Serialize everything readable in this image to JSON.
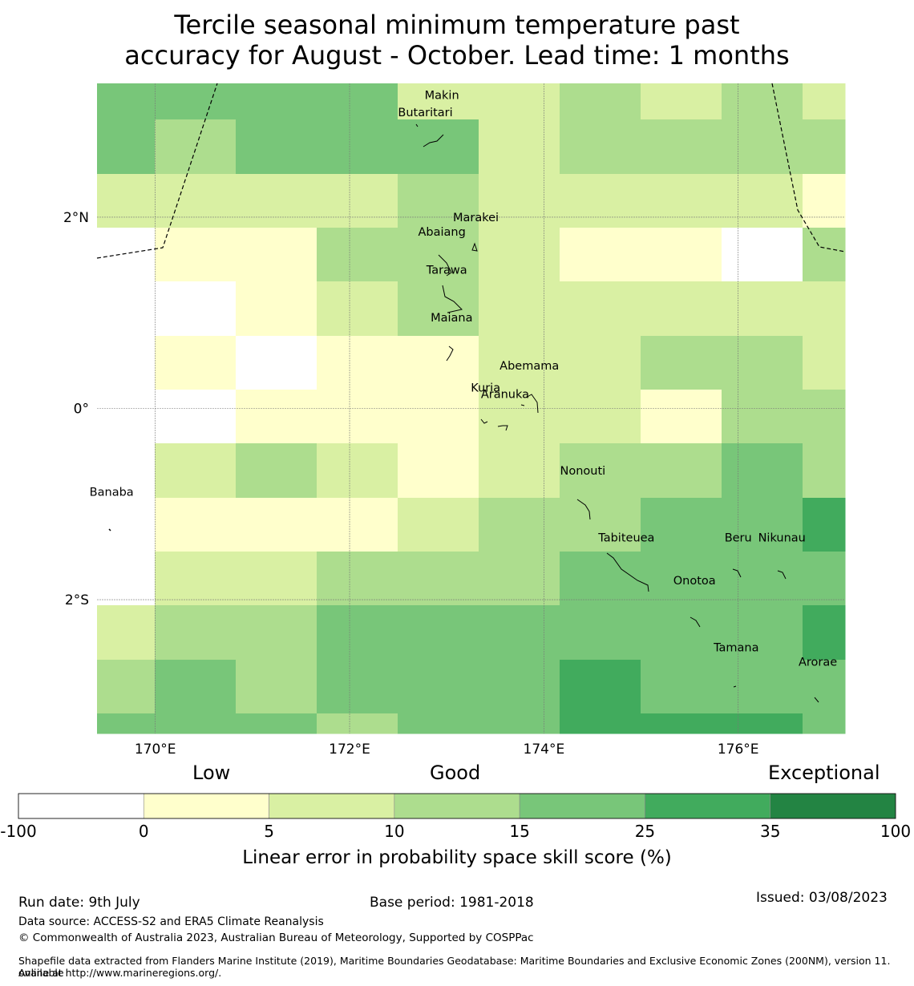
{
  "title": {
    "line1": "Tercile seasonal minimum temperature past",
    "line2": "accuracy for August - October. Lead time: 1 months"
  },
  "map": {
    "lon_range": [
      169.4,
      177.1
    ],
    "lat_range": [
      -3.4,
      3.4
    ],
    "lon_ticks": [
      {
        "value": 170,
        "label": "170°E"
      },
      {
        "value": 172,
        "label": "172°E"
      },
      {
        "value": 174,
        "label": "174°E"
      },
      {
        "value": 176,
        "label": "176°E"
      }
    ],
    "lat_ticks": [
      {
        "value": 2,
        "label": "2°N"
      },
      {
        "value": 0,
        "label": "0°"
      },
      {
        "value": -2,
        "label": "2°S"
      }
    ],
    "grid_columns": 9,
    "grid_rows": 12,
    "grid_values": [
      [
        20,
        20,
        20,
        20,
        7,
        7,
        12,
        7,
        12,
        7
      ],
      [
        20,
        12,
        20,
        20,
        20,
        7,
        12,
        12,
        12,
        12
      ],
      [
        7,
        7,
        7,
        7,
        12,
        7,
        7,
        7,
        7,
        2
      ],
      [
        -1,
        2,
        2,
        12,
        12,
        7,
        2,
        2,
        -1,
        12
      ],
      [
        -1,
        -1,
        2,
        7,
        12,
        7,
        7,
        7,
        7,
        7
      ],
      [
        -1,
        2,
        -1,
        2,
        2,
        7,
        7,
        12,
        12,
        7
      ],
      [
        -1,
        -1,
        2,
        2,
        2,
        7,
        7,
        2,
        12,
        12
      ],
      [
        -1,
        7,
        12,
        7,
        2,
        7,
        12,
        12,
        20,
        12
      ],
      [
        -1,
        2,
        2,
        2,
        7,
        12,
        12,
        20,
        20,
        30
      ],
      [
        -1,
        7,
        7,
        12,
        12,
        12,
        20,
        20,
        20,
        20
      ],
      [
        7,
        12,
        12,
        20,
        20,
        20,
        20,
        20,
        20,
        30
      ],
      [
        12,
        20,
        12,
        20,
        20,
        20,
        30,
        20,
        20,
        20
      ],
      [
        20,
        20,
        20,
        12,
        20,
        20,
        30,
        30,
        30,
        20
      ]
    ],
    "islands": [
      {
        "name": "Makin",
        "lon": 172.95,
        "lat": 3.28
      },
      {
        "name": "Butaritari",
        "lon": 172.78,
        "lat": 3.1
      },
      {
        "name": "Marakei",
        "lon": 173.3,
        "lat": 2.0
      },
      {
        "name": "Abaiang",
        "lon": 172.95,
        "lat": 1.85
      },
      {
        "name": "Tarawa",
        "lon": 173.0,
        "lat": 1.45
      },
      {
        "name": "Maiana",
        "lon": 173.05,
        "lat": 0.95
      },
      {
        "name": "Abemama",
        "lon": 173.85,
        "lat": 0.45
      },
      {
        "name": "Kuria",
        "lon": 173.4,
        "lat": 0.22
      },
      {
        "name": "Aranuka",
        "lon": 173.6,
        "lat": 0.15
      },
      {
        "name": "Banaba",
        "lon": 169.55,
        "lat": -0.87
      },
      {
        "name": "Nonouti",
        "lon": 174.4,
        "lat": -0.65
      },
      {
        "name": "Tabiteuea",
        "lon": 174.85,
        "lat": -1.35
      },
      {
        "name": "Beru",
        "lon": 176.0,
        "lat": -1.35
      },
      {
        "name": "Nikunau",
        "lon": 176.45,
        "lat": -1.35
      },
      {
        "name": "Onotoa",
        "lon": 175.55,
        "lat": -1.8
      },
      {
        "name": "Tamana",
        "lon": 175.98,
        "lat": -2.5
      },
      {
        "name": "Arorae",
        "lon": 176.82,
        "lat": -2.65
      }
    ],
    "eez_boundary_color": "#000000"
  },
  "colorbar": {
    "category_labels": {
      "low": "Low",
      "good": "Good",
      "exceptional": "Exceptional"
    },
    "bins": [
      {
        "from": -100,
        "to": 0,
        "color": "#ffffff"
      },
      {
        "from": 0,
        "to": 5,
        "color": "#ffffcc"
      },
      {
        "from": 5,
        "to": 10,
        "color": "#d9f0a3"
      },
      {
        "from": 10,
        "to": 15,
        "color": "#addd8e"
      },
      {
        "from": 15,
        "to": 25,
        "color": "#78c679"
      },
      {
        "from": 25,
        "to": 35,
        "color": "#41ab5d"
      },
      {
        "from": 35,
        "to": 100,
        "color": "#238443"
      }
    ],
    "tick_labels": [
      "-100",
      "0",
      "5",
      "10",
      "15",
      "25",
      "35",
      "100"
    ],
    "label": "Linear error in probability space skill score (%)"
  },
  "footer": {
    "run_date": "Run date: 9th July",
    "base_period": "Base period: 1981-2018",
    "issued": "Issued: 03/08/2023",
    "data_source": "Data source: ACCESS-S2 and ERA5 Climate Reanalysis",
    "copyright": "© Commonwealth of Australia 2023, Australian Bureau of Meteorology, Supported by COSPPac",
    "shapefile_line1": "Shapefile data extracted from Flanders Marine Institute (2019), Maritime Boundaries Geodatabase: Maritime Boundaries and Exclusive Economic Zones (200NM), version 11. Available",
    "shapefile_line2": "online at http://www.marineregions.org/."
  }
}
